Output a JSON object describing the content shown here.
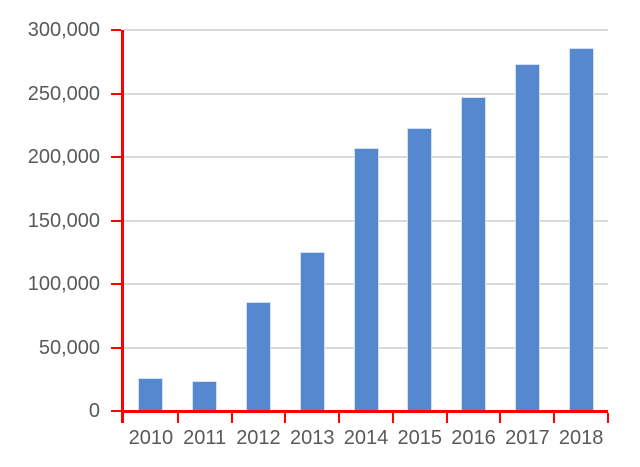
{
  "chart_data": {
    "type": "bar",
    "title": "",
    "xlabel": "",
    "ylabel": "",
    "categories": [
      "2010",
      "2011",
      "2012",
      "2013",
      "2014",
      "2015",
      "2016",
      "2017",
      "2018"
    ],
    "values": [
      26000,
      24000,
      86000,
      125000,
      207000,
      223000,
      247000,
      273000,
      286000
    ],
    "ylim": [
      0,
      300000
    ],
    "ytick_interval": 50000,
    "ytick_labels": [
      "0",
      "50,000",
      "100,000",
      "150,000",
      "200,000",
      "250,000",
      "300,000"
    ],
    "grid": true,
    "legend": false,
    "colors": {
      "bar_fill": "#5588CE",
      "bar_border": "#D2E1F3",
      "axis_line": "#FF0000",
      "gridline": "#D9D9D9",
      "tick_label": "#595959",
      "background": "#FFFFFF"
    }
  }
}
